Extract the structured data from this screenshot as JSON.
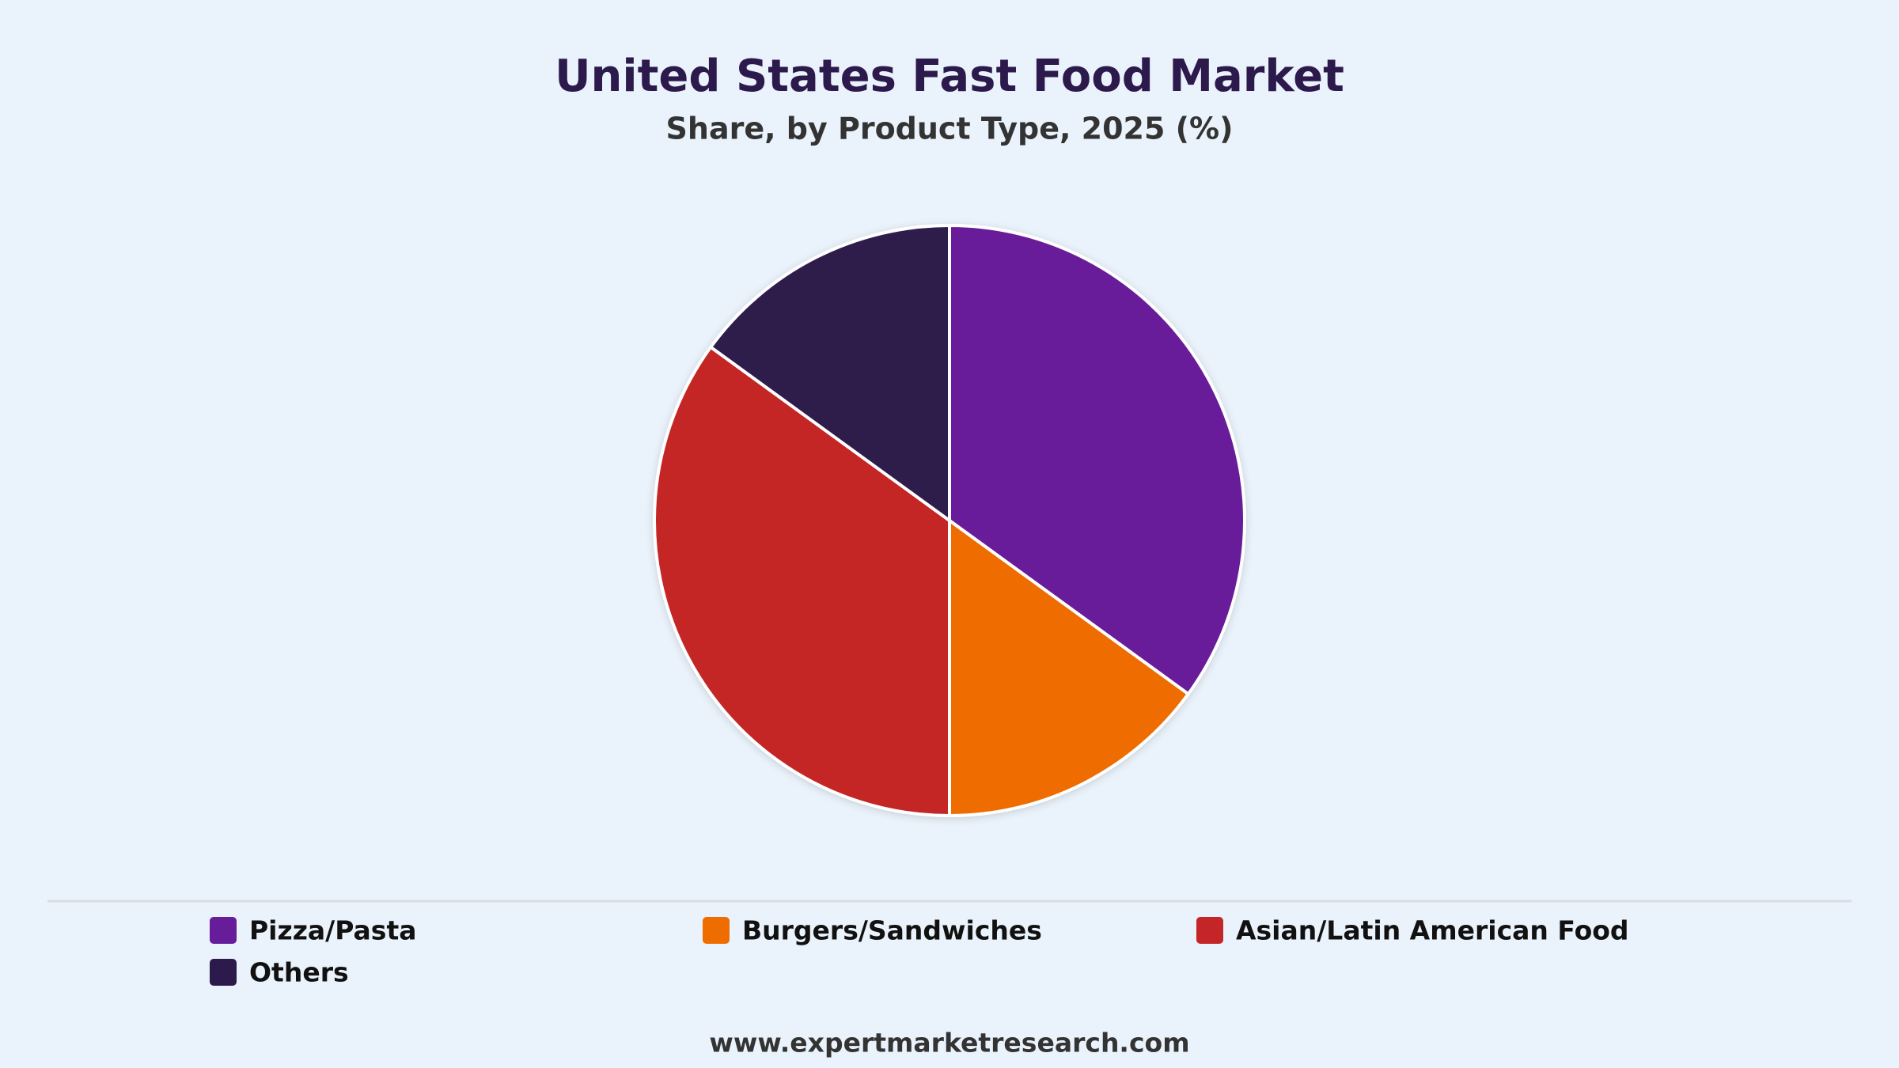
{
  "chart_data": {
    "type": "pie",
    "title": "United States Fast Food Market",
    "subtitle": "Share, by Product Type, 2025 (%)",
    "categories": [
      "Pizza/Pasta",
      "Burgers/Sandwiches",
      "Asian/Latin American Food",
      "Others"
    ],
    "values": [
      35,
      15,
      35,
      15
    ],
    "colors": [
      "#671c99",
      "#ee6c00",
      "#c42526",
      "#2d1a4c"
    ],
    "source": "www.expertmarketresearch.com"
  }
}
